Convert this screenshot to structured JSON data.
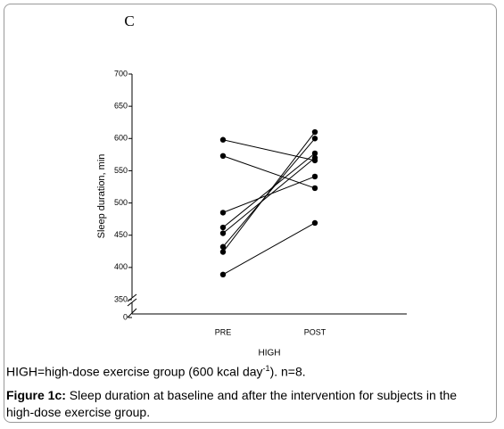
{
  "chart_data": {
    "type": "paired-line",
    "title": "C",
    "ylabel": "Sleep duration, min",
    "xlabel": "HIGH",
    "categories": [
      "PRE",
      "POST"
    ],
    "series": [
      {
        "color": "#000000",
        "values": [
          598,
          566
        ]
      },
      {
        "color": "#000000",
        "values": [
          573,
          523
        ]
      },
      {
        "color": "#000000",
        "values": [
          485,
          541
        ]
      },
      {
        "color": "#000000",
        "values": [
          462,
          577
        ]
      },
      {
        "color": "#000000",
        "values": [
          453,
          570
        ]
      },
      {
        "color": "#000000",
        "values": [
          432,
          600
        ]
      },
      {
        "color": "#000000",
        "values": [
          424,
          610
        ]
      },
      {
        "color": "#000000",
        "values": [
          389,
          469
        ]
      }
    ],
    "ylim": [
      0,
      700
    ],
    "y_break": [
      0,
      350
    ],
    "yticks": [
      0,
      350,
      400,
      450,
      500,
      550,
      600,
      650,
      700
    ]
  },
  "note": {
    "text": "HIGH=high-dose exercise group (600 kcal day",
    "superscript": "-1",
    "tail": "). n=8."
  },
  "caption": {
    "label": "Figure 1c:",
    "text": " Sleep duration at baseline and after the intervention for subjects in the high-dose exercise group."
  }
}
